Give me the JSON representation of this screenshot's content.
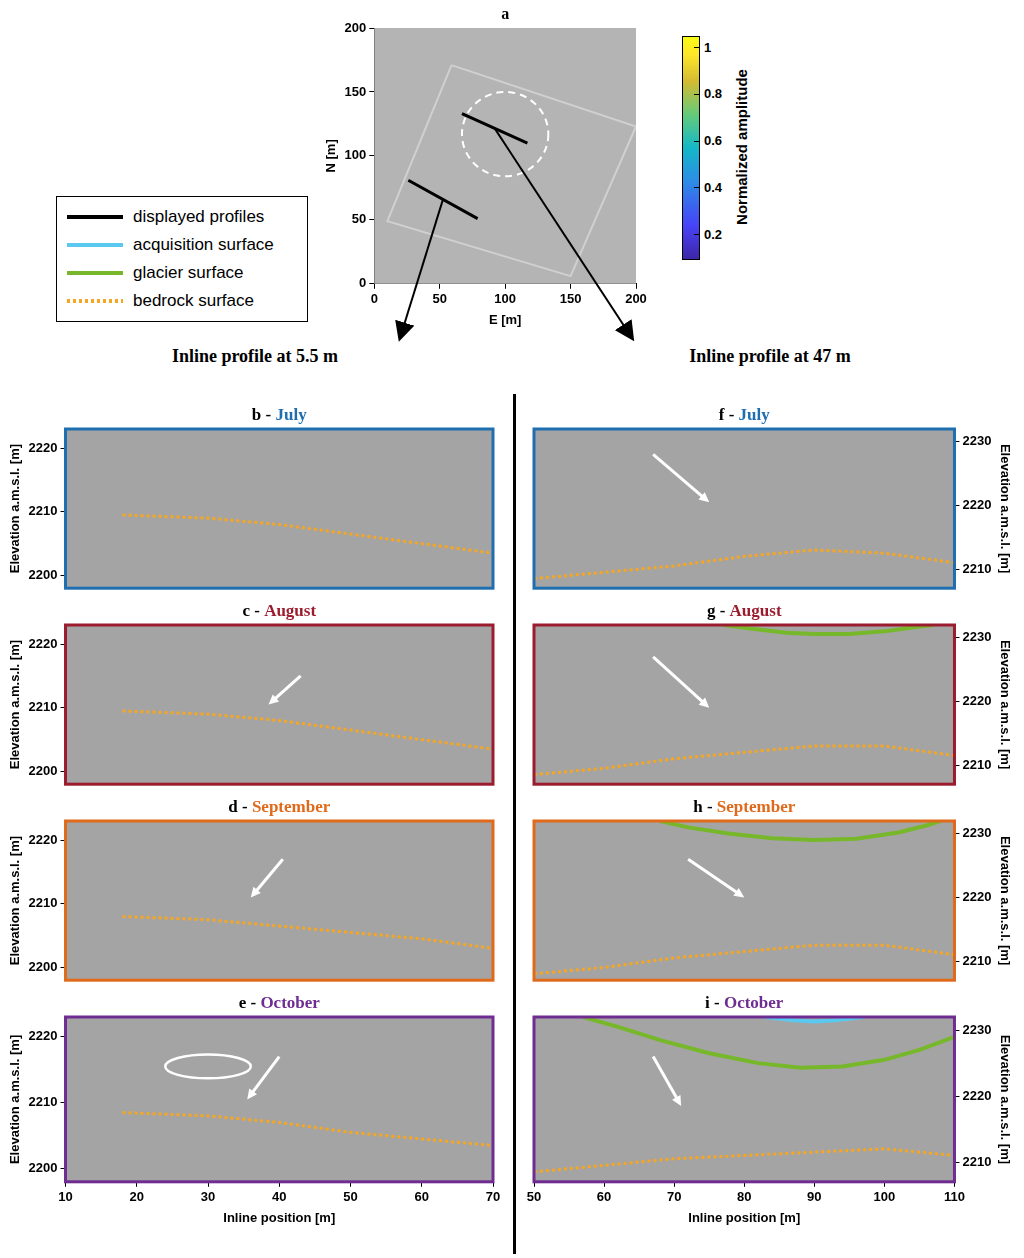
{
  "figure": {
    "column_titles": [
      "Inline profile at 5.5 m",
      "Inline profile at 47 m"
    ],
    "legend_entries": [
      {
        "name": "displayed profiles",
        "color": "#000000",
        "line_style": "solid"
      },
      {
        "name": "acquisition surface",
        "color": "#5bc8f0",
        "line_style": "solid"
      },
      {
        "name": "glacier surface",
        "color": "#77b82a",
        "line_style": "solid"
      },
      {
        "name": "bedrock surface",
        "color": "#f5a623",
        "line_style": "dotted"
      }
    ]
  },
  "chart_data": [
    {
      "type": "map",
      "title": "a",
      "x_label": "E [m]",
      "y_label": "N [m]",
      "xlim": [
        0,
        200
      ],
      "ylim": [
        0,
        200
      ],
      "xticks": [
        0,
        50,
        100,
        150,
        200
      ],
      "yticks": [
        0,
        50,
        100,
        150,
        200
      ],
      "grid": false,
      "series": [
        {
          "color": "#d0d0d0",
          "line_style": "solid",
          "x": [
            59,
            200,
            150,
            10,
            59
          ],
          "y": [
            171,
            123,
            6,
            49,
            171
          ]
        },
        {
          "name": "displayed profiles",
          "color": "#000000",
          "line_style": "solid",
          "x": [
            26,
            79,
            null,
            67,
            117
          ],
          "y": [
            81,
            51,
            null,
            133,
            110
          ]
        }
      ],
      "annotations": [
        {
          "type": "circle",
          "center": [
            100,
            117
          ],
          "radius": 33,
          "color": "#ffffff",
          "line_style": "dashed"
        }
      ],
      "colorbar": {
        "label": "Normalized amplitude",
        "range": [
          0.1,
          1.05
        ],
        "ticks": [
          0.2,
          0.4,
          0.6,
          0.8,
          1
        ]
      }
    },
    {
      "type": "line",
      "title": "b - July",
      "color": "#1f6eb0",
      "y_label": "Elevation a.m.s.l. [m]",
      "xlim": [
        10,
        70
      ],
      "ylim": [
        2198,
        2223
      ],
      "yticks": [
        2200,
        2210,
        2220
      ],
      "tick_labels": "y",
      "grid": false,
      "series": [
        {
          "name": "bedrock surface",
          "color": "#f5a623",
          "line_style": "dotted",
          "x": [
            18,
            30,
            40,
            50,
            60,
            70
          ],
          "values": [
            2209.5,
            2209,
            2208,
            2206.5,
            2205,
            2203.5
          ]
        }
      ],
      "annotations": []
    },
    {
      "type": "line",
      "title": "c - August",
      "color": "#9b1c2e",
      "y_label": "Elevation a.m.s.l. [m]",
      "xlim": [
        10,
        70
      ],
      "ylim": [
        2198,
        2223
      ],
      "yticks": [
        2200,
        2210,
        2220
      ],
      "tick_labels": "y",
      "grid": false,
      "series": [
        {
          "name": "bedrock surface",
          "color": "#f5a623",
          "line_style": "dotted",
          "x": [
            18,
            30,
            40,
            50,
            60,
            70
          ],
          "values": [
            2209.5,
            2209,
            2208,
            2206.5,
            2205,
            2203.5
          ]
        }
      ],
      "annotations": [
        {
          "type": "arrow",
          "from": [
            43,
            2215
          ],
          "to": [
            38.5,
            2210.5
          ],
          "color": "#ffffff"
        }
      ]
    },
    {
      "type": "line",
      "title": "d - September",
      "color": "#e06a1b",
      "y_label": "Elevation a.m.s.l. [m]",
      "xlim": [
        10,
        70
      ],
      "ylim": [
        2198,
        2223
      ],
      "yticks": [
        2200,
        2210,
        2220
      ],
      "tick_labels": "y",
      "grid": false,
      "series": [
        {
          "name": "bedrock surface",
          "color": "#f5a623",
          "line_style": "dotted",
          "x": [
            18,
            30,
            40,
            50,
            60,
            70
          ],
          "values": [
            2208,
            2207.5,
            2206.5,
            2205.5,
            2204.5,
            2203
          ]
        }
      ],
      "annotations": [
        {
          "type": "arrow",
          "from": [
            40.5,
            2217
          ],
          "to": [
            36,
            2211
          ],
          "color": "#ffffff"
        }
      ]
    },
    {
      "type": "line",
      "title": "e - October",
      "color": "#6f2c91",
      "x_label": "Inline position [m]",
      "y_label": "Elevation a.m.s.l. [m]",
      "xlim": [
        10,
        70
      ],
      "ylim": [
        2198,
        2223
      ],
      "xticks": [
        10,
        20,
        30,
        40,
        50,
        60,
        70
      ],
      "yticks": [
        2200,
        2210,
        2220
      ],
      "grid": false,
      "series": [
        {
          "name": "bedrock surface",
          "color": "#f5a623",
          "line_style": "dotted",
          "x": [
            18,
            30,
            40,
            50,
            60,
            70
          ],
          "values": [
            2208.5,
            2208,
            2207,
            2205.5,
            2204.5,
            2203.5
          ]
        }
      ],
      "annotations": [
        {
          "type": "arrow",
          "from": [
            40,
            2217
          ],
          "to": [
            35.5,
            2210.5
          ],
          "color": "#ffffff"
        },
        {
          "type": "ellipse",
          "center": [
            30,
            2215.5
          ],
          "radii": [
            6,
            1.8
          ],
          "color": "#ffffff"
        }
      ]
    },
    {
      "type": "line",
      "title": "f - July",
      "color": "#1f6eb0",
      "y_label": "Elevation a.m.s.l. [m]",
      "xlim": [
        50,
        110
      ],
      "ylim": [
        2207,
        2232
      ],
      "yticks": [
        2210,
        2220,
        2230
      ],
      "tick_labels": "y",
      "grid": false,
      "series": [
        {
          "name": "bedrock surface",
          "color": "#f5a623",
          "line_style": "dotted",
          "x": [
            50,
            60,
            70,
            80,
            90,
            100,
            110
          ],
          "values": [
            2208.5,
            2209.5,
            2210.5,
            2212,
            2213,
            2212.5,
            2211
          ]
        }
      ],
      "annotations": [
        {
          "type": "arrow",
          "from": [
            67,
            2228
          ],
          "to": [
            75,
            2220.5
          ],
          "color": "#ffffff"
        }
      ]
    },
    {
      "type": "line",
      "title": "g - August",
      "color": "#9b1c2e",
      "y_label": "Elevation a.m.s.l. [m]",
      "xlim": [
        50,
        110
      ],
      "ylim": [
        2207,
        2232
      ],
      "yticks": [
        2210,
        2220,
        2230
      ],
      "tick_labels": "y",
      "grid": false,
      "series": [
        {
          "name": "bedrock surface",
          "color": "#f5a623",
          "line_style": "dotted",
          "x": [
            50,
            60,
            70,
            80,
            90,
            100,
            110
          ],
          "values": [
            2208.5,
            2209.5,
            2211,
            2212,
            2213,
            2213,
            2211.5
          ]
        },
        {
          "name": "glacier surface",
          "color": "#77b82a",
          "line_style": "solid",
          "x": [
            77,
            82,
            86,
            90,
            95,
            100,
            104,
            107
          ],
          "values": [
            2232,
            2231.3,
            2230.8,
            2230.6,
            2230.6,
            2231,
            2231.6,
            2232
          ]
        }
      ],
      "annotations": [
        {
          "type": "arrow",
          "from": [
            67,
            2227
          ],
          "to": [
            75,
            2219
          ],
          "color": "#ffffff"
        }
      ]
    },
    {
      "type": "line",
      "title": "h - September",
      "color": "#e06a1b",
      "y_label": "Elevation a.m.s.l. [m]",
      "xlim": [
        50,
        110
      ],
      "ylim": [
        2207,
        2232
      ],
      "yticks": [
        2210,
        2220,
        2230
      ],
      "tick_labels": "y",
      "grid": false,
      "series": [
        {
          "name": "bedrock surface",
          "color": "#f5a623",
          "line_style": "dotted",
          "x": [
            50,
            60,
            70,
            80,
            90,
            100,
            110
          ],
          "values": [
            2208,
            2209,
            2210.5,
            2211.5,
            2212.5,
            2212.5,
            2211
          ]
        },
        {
          "name": "glacier surface",
          "color": "#77b82a",
          "line_style": "solid",
          "x": [
            68,
            72,
            78,
            84,
            90,
            96,
            102,
            106,
            108
          ],
          "values": [
            2232,
            2231,
            2230,
            2229.3,
            2229,
            2229.2,
            2230.2,
            2231.3,
            2232
          ]
        }
      ],
      "annotations": [
        {
          "type": "arrow",
          "from": [
            72,
            2226
          ],
          "to": [
            80,
            2220
          ],
          "color": "#ffffff"
        }
      ]
    },
    {
      "type": "line",
      "title": "i - October",
      "color": "#6f2c91",
      "x_label": "Inline position [m]",
      "y_label": "Elevation a.m.s.l. [m]",
      "xlim": [
        50,
        110
      ],
      "ylim": [
        2207,
        2232
      ],
      "xticks": [
        50,
        60,
        70,
        80,
        90,
        100,
        110
      ],
      "yticks": [
        2210,
        2220,
        2230
      ],
      "grid": false,
      "series": [
        {
          "name": "bedrock surface",
          "color": "#f5a623",
          "line_style": "dotted",
          "x": [
            50,
            60,
            70,
            80,
            90,
            100,
            110
          ],
          "values": [
            2208.5,
            2209.5,
            2210.5,
            2211,
            2211.5,
            2212,
            2211
          ]
        },
        {
          "name": "glacier surface",
          "color": "#77b82a",
          "line_style": "solid",
          "x": [
            57,
            62,
            68,
            75,
            82,
            88,
            94,
            100,
            105,
            110
          ],
          "values": [
            2232,
            2230.5,
            2228.5,
            2226.5,
            2225,
            2224.3,
            2224.5,
            2225.5,
            2227,
            2229
          ]
        },
        {
          "name": "acquisition surface",
          "color": "#5bc8f0",
          "line_style": "solid",
          "x": [
            83,
            87,
            90,
            93,
            97
          ],
          "values": [
            2232,
            2231.5,
            2231.3,
            2231.5,
            2232
          ]
        }
      ],
      "annotations": [
        {
          "type": "arrow",
          "from": [
            67,
            2226
          ],
          "to": [
            71,
            2218.5
          ],
          "color": "#ffffff"
        }
      ]
    }
  ]
}
